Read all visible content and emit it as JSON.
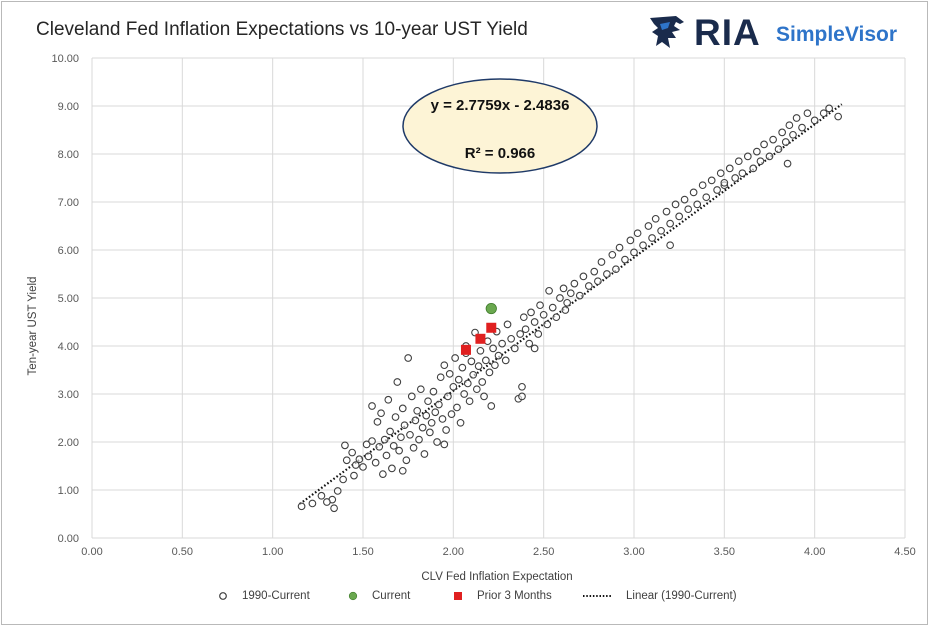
{
  "title": "Cleveland Fed Inflation Expectations vs 10-year UST Yield",
  "logo": {
    "ria": "RIA",
    "simplevisor": "SimpleVisor"
  },
  "chart_data": {
    "type": "scatter",
    "title": "Cleveland Fed Inflation Expectations vs 10-year UST Yield",
    "xlabel": "CLV Fed Inflation Expectation",
    "ylabel": "Ten-year UST Yield",
    "xlim": [
      0,
      4.5
    ],
    "ylim": [
      0,
      10
    ],
    "xticks": [
      "0.00",
      "0.50",
      "1.00",
      "1.50",
      "2.00",
      "2.50",
      "3.00",
      "3.50",
      "4.00",
      "4.50"
    ],
    "yticks": [
      "0.00",
      "1.00",
      "2.00",
      "3.00",
      "4.00",
      "5.00",
      "6.00",
      "7.00",
      "8.00",
      "9.00",
      "10.00"
    ],
    "grid": true,
    "legend_position": "bottom",
    "annotation": {
      "line1": "y = 2.7759x - 2.4836",
      "line2": "R² = 0.966"
    },
    "trendline": {
      "name": "Linear (1990-Current)",
      "slope": 2.7759,
      "intercept": -2.4836,
      "x_range": [
        1.15,
        4.15
      ]
    },
    "series": [
      {
        "name": "1990-Current",
        "marker": "open-circle",
        "color": "#404040",
        "points": [
          [
            1.16,
            0.66
          ],
          [
            1.22,
            0.72
          ],
          [
            1.27,
            0.88
          ],
          [
            1.33,
            0.8
          ],
          [
            1.34,
            0.62
          ],
          [
            1.36,
            0.98
          ],
          [
            1.39,
            1.22
          ],
          [
            1.41,
            1.62
          ],
          [
            1.4,
            1.93
          ],
          [
            1.44,
            1.78
          ],
          [
            1.46,
            1.52
          ],
          [
            1.48,
            1.64
          ],
          [
            1.5,
            1.48
          ],
          [
            1.52,
            1.95
          ],
          [
            1.53,
            1.7
          ],
          [
            1.55,
            2.02
          ],
          [
            1.55,
            2.75
          ],
          [
            1.57,
            1.57
          ],
          [
            1.58,
            2.42
          ],
          [
            1.59,
            1.9
          ],
          [
            1.6,
            2.6
          ],
          [
            1.61,
            1.33
          ],
          [
            1.62,
            2.05
          ],
          [
            1.63,
            1.72
          ],
          [
            1.64,
            2.88
          ],
          [
            1.65,
            2.22
          ],
          [
            1.66,
            1.45
          ],
          [
            1.67,
            1.92
          ],
          [
            1.68,
            2.52
          ],
          [
            1.69,
            3.25
          ],
          [
            1.7,
            1.82
          ],
          [
            1.71,
            2.1
          ],
          [
            1.72,
            2.7
          ],
          [
            1.73,
            2.35
          ],
          [
            1.74,
            1.62
          ],
          [
            1.75,
            3.75
          ],
          [
            1.76,
            2.15
          ],
          [
            1.77,
            2.95
          ],
          [
            1.78,
            1.88
          ],
          [
            1.79,
            2.45
          ],
          [
            1.8,
            2.65
          ],
          [
            1.81,
            2.05
          ],
          [
            1.82,
            3.1
          ],
          [
            1.83,
            2.3
          ],
          [
            1.84,
            1.75
          ],
          [
            1.85,
            2.55
          ],
          [
            1.86,
            2.85
          ],
          [
            1.87,
            2.2
          ],
          [
            1.88,
            2.4
          ],
          [
            1.89,
            3.05
          ],
          [
            1.9,
            2.62
          ],
          [
            1.91,
            2.0
          ],
          [
            1.92,
            2.78
          ],
          [
            1.93,
            3.35
          ],
          [
            1.94,
            2.48
          ],
          [
            1.95,
            3.6
          ],
          [
            1.96,
            2.25
          ],
          [
            1.97,
            2.95
          ],
          [
            1.98,
            3.42
          ],
          [
            1.99,
            2.58
          ],
          [
            2.0,
            3.15
          ],
          [
            2.01,
            3.75
          ],
          [
            2.02,
            2.72
          ],
          [
            2.03,
            3.3
          ],
          [
            2.04,
            2.4
          ],
          [
            2.05,
            3.55
          ],
          [
            2.06,
            3.0
          ],
          [
            2.07,
            3.85
          ],
          [
            2.08,
            3.22
          ],
          [
            2.09,
            2.85
          ],
          [
            2.1,
            3.68
          ],
          [
            2.11,
            3.4
          ],
          [
            2.12,
            4.28
          ],
          [
            2.13,
            3.1
          ],
          [
            2.14,
            3.58
          ],
          [
            2.15,
            3.9
          ],
          [
            2.16,
            3.25
          ],
          [
            2.17,
            2.95
          ],
          [
            2.18,
            3.7
          ],
          [
            2.19,
            4.1
          ],
          [
            2.2,
            3.45
          ],
          [
            2.21,
            2.75
          ],
          [
            2.22,
            3.95
          ],
          [
            2.23,
            3.6
          ],
          [
            2.24,
            4.3
          ],
          [
            2.25,
            3.8
          ],
          [
            2.27,
            4.05
          ],
          [
            2.29,
            3.7
          ],
          [
            2.3,
            4.45
          ],
          [
            2.32,
            4.15
          ],
          [
            2.34,
            3.95
          ],
          [
            2.36,
            2.9
          ],
          [
            2.37,
            4.25
          ],
          [
            2.38,
            3.15
          ],
          [
            2.39,
            4.6
          ],
          [
            2.4,
            4.35
          ],
          [
            2.42,
            4.05
          ],
          [
            2.43,
            4.7
          ],
          [
            2.45,
            4.5
          ],
          [
            2.47,
            4.25
          ],
          [
            2.48,
            4.85
          ],
          [
            2.5,
            4.65
          ],
          [
            2.52,
            4.45
          ],
          [
            2.53,
            5.15
          ],
          [
            2.55,
            4.8
          ],
          [
            2.57,
            4.6
          ],
          [
            2.59,
            5.0
          ],
          [
            2.61,
            5.2
          ],
          [
            2.63,
            4.9
          ],
          [
            2.65,
            5.1
          ],
          [
            2.67,
            5.3
          ],
          [
            2.7,
            5.05
          ],
          [
            2.72,
            5.45
          ],
          [
            2.75,
            5.25
          ],
          [
            2.78,
            5.55
          ],
          [
            2.8,
            5.35
          ],
          [
            2.82,
            5.75
          ],
          [
            2.85,
            5.5
          ],
          [
            2.88,
            5.9
          ],
          [
            2.9,
            5.6
          ],
          [
            2.92,
            6.05
          ],
          [
            2.95,
            5.8
          ],
          [
            2.98,
            6.2
          ],
          [
            3.0,
            5.95
          ],
          [
            3.02,
            6.35
          ],
          [
            3.05,
            6.1
          ],
          [
            3.08,
            6.5
          ],
          [
            3.1,
            6.25
          ],
          [
            3.12,
            6.65
          ],
          [
            3.15,
            6.4
          ],
          [
            3.18,
            6.8
          ],
          [
            3.2,
            6.55
          ],
          [
            3.23,
            6.95
          ],
          [
            3.25,
            6.7
          ],
          [
            3.28,
            7.05
          ],
          [
            3.3,
            6.85
          ],
          [
            3.33,
            7.2
          ],
          [
            3.35,
            6.95
          ],
          [
            3.38,
            7.35
          ],
          [
            3.4,
            7.1
          ],
          [
            3.43,
            7.45
          ],
          [
            3.46,
            7.25
          ],
          [
            3.48,
            7.6
          ],
          [
            3.5,
            7.35
          ],
          [
            3.53,
            7.7
          ],
          [
            3.56,
            7.5
          ],
          [
            3.58,
            7.85
          ],
          [
            3.6,
            7.6
          ],
          [
            3.63,
            7.95
          ],
          [
            3.66,
            7.7
          ],
          [
            3.68,
            8.05
          ],
          [
            3.7,
            7.85
          ],
          [
            3.72,
            8.2
          ],
          [
            3.75,
            7.95
          ],
          [
            3.77,
            8.3
          ],
          [
            3.8,
            8.1
          ],
          [
            3.82,
            8.45
          ],
          [
            3.84,
            8.25
          ],
          [
            3.86,
            8.6
          ],
          [
            3.88,
            8.4
          ],
          [
            3.9,
            8.75
          ],
          [
            3.93,
            8.55
          ],
          [
            3.96,
            8.85
          ],
          [
            4.0,
            8.7
          ],
          [
            4.05,
            8.85
          ],
          [
            4.08,
            8.95
          ],
          [
            4.13,
            8.78
          ],
          [
            3.85,
            7.8
          ],
          [
            3.5,
            7.4
          ],
          [
            3.2,
            6.1
          ],
          [
            2.62,
            4.75
          ],
          [
            2.45,
            3.95
          ],
          [
            2.38,
            2.95
          ],
          [
            2.07,
            4.0
          ],
          [
            1.95,
            1.95
          ],
          [
            1.72,
            1.4
          ],
          [
            1.45,
            1.3
          ],
          [
            1.3,
            0.75
          ]
        ]
      },
      {
        "name": "Current",
        "marker": "filled-circle",
        "color": "#6aa84f",
        "points": [
          [
            2.21,
            4.78
          ]
        ]
      },
      {
        "name": "Prior 3 Months",
        "marker": "filled-square",
        "color": "#e02020",
        "points": [
          [
            2.07,
            3.92
          ],
          [
            2.15,
            4.15
          ],
          [
            2.21,
            4.38
          ]
        ]
      }
    ]
  },
  "legend": {
    "items": [
      {
        "label": "1990-Current"
      },
      {
        "label": "Current"
      },
      {
        "label": "Prior 3 Months"
      },
      {
        "label": "Linear (1990-Current)"
      }
    ]
  }
}
